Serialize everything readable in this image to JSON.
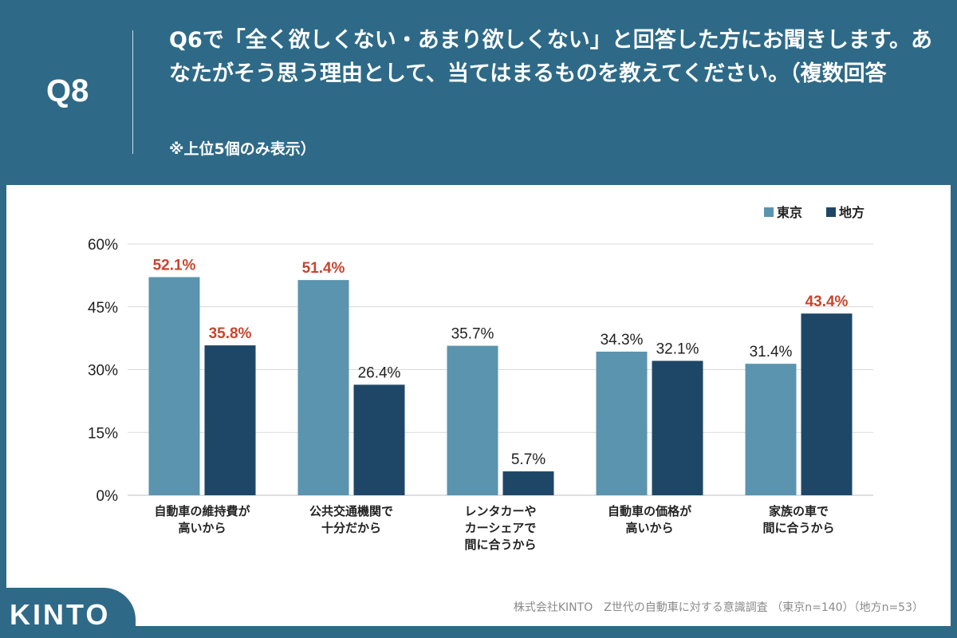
{
  "header": {
    "qnum": "Q8",
    "title": "Q6で「全く欲しくない・あまり欲しくない」と回答した方にお聞きします。あなたがそう思う理由として、当てはまるものを教えてください。（複数回答",
    "note": "※上位5個のみ表示）"
  },
  "footer": {
    "logo": "KINTO",
    "source": "株式会社KINTO　Z世代の自動車に対する意識調査 （東京n=140）（地方n=53）"
  },
  "chart_data": {
    "type": "bar",
    "categories": [
      "自動車の維持費が\n高いから",
      "公共交通機関で\n十分だから",
      "レンタカーや\nカーシェアで\n間に合うから",
      "自動車の価格が\n高いから",
      "家族の車で\n間に合うから"
    ],
    "series": [
      {
        "name": "東京",
        "color": "#5b94ae",
        "values": [
          52.1,
          51.4,
          35.7,
          34.3,
          31.4
        ],
        "labels": [
          "52.1%",
          "51.4%",
          "35.7%",
          "34.3%",
          "31.4%"
        ],
        "highlight": [
          true,
          true,
          false,
          false,
          false
        ]
      },
      {
        "name": "地方",
        "color": "#1e4767",
        "values": [
          35.8,
          26.4,
          5.7,
          32.1,
          43.4
        ],
        "labels": [
          "35.8%",
          "26.4%",
          "5.7%",
          "32.1%",
          "43.4%"
        ],
        "highlight": [
          true,
          false,
          false,
          false,
          true
        ]
      }
    ],
    "highlight_color": "#c8442f",
    "yticks": [
      "0%",
      "15%",
      "30%",
      "45%",
      "60%"
    ],
    "ylim": [
      0,
      60
    ],
    "grid": true,
    "legend": "top-right"
  }
}
